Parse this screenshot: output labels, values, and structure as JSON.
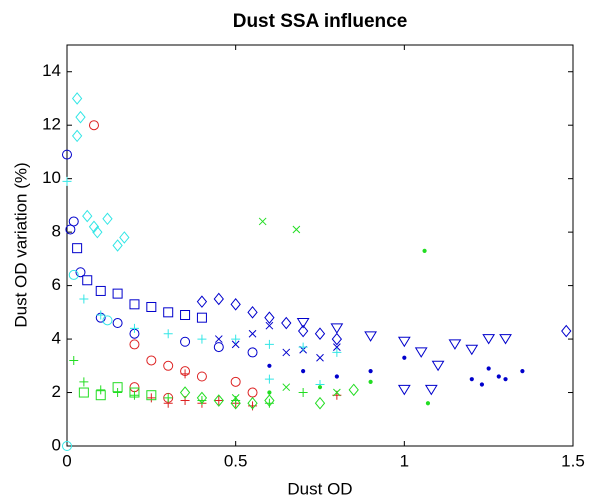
{
  "chart_data": {
    "type": "scatter",
    "title": "Dust SSA influence",
    "x_label": "Dust OD",
    "y_label": "Dust OD variation (%)",
    "xlim": [
      0,
      1.5
    ],
    "xticks": [
      0,
      0.5,
      1,
      1.5
    ],
    "ylim": [
      0,
      15
    ],
    "yticks": [
      0,
      2,
      4,
      6,
      8,
      10,
      12,
      14
    ],
    "grid": false,
    "series": [
      {
        "color": "#0000cc",
        "marker": "circle",
        "x": [
          0,
          0.02,
          0.01,
          0.04,
          0.1,
          0.15,
          0.2,
          0.35,
          0.45,
          0.55
        ],
        "values": [
          10.9,
          8.4,
          8.1,
          6.5,
          4.8,
          4.6,
          4.2,
          3.9,
          3.7,
          3.5
        ]
      },
      {
        "color": "#0000cc",
        "marker": "square",
        "x": [
          0.03,
          0.06,
          0.1,
          0.15,
          0.2,
          0.25,
          0.3,
          0.35,
          0.4
        ],
        "values": [
          7.4,
          6.2,
          5.8,
          5.7,
          5.3,
          5.2,
          5.0,
          4.9,
          4.8
        ]
      },
      {
        "color": "#0000cc",
        "marker": "diamond",
        "x": [
          0.4,
          0.45,
          0.5,
          0.55,
          0.6,
          0.65,
          0.7,
          0.75,
          0.8,
          1.48
        ],
        "values": [
          5.4,
          5.5,
          5.3,
          5.0,
          4.8,
          4.6,
          4.3,
          4.2,
          4.0,
          4.3
        ]
      },
      {
        "color": "#0000cc",
        "marker": "x",
        "x": [
          0.45,
          0.5,
          0.55,
          0.6,
          0.65,
          0.7,
          0.75,
          0.8
        ],
        "values": [
          4.0,
          3.8,
          4.2,
          4.5,
          3.5,
          3.6,
          3.3,
          3.7
        ]
      },
      {
        "color": "#0000cc",
        "marker": "triangle-down",
        "x": [
          0.7,
          0.8,
          0.9,
          1.0,
          1.05,
          1.1,
          1.15,
          1.2,
          1.25,
          1.3,
          1.0,
          1.08
        ],
        "values": [
          4.6,
          4.4,
          4.1,
          3.9,
          3.5,
          3.0,
          3.8,
          3.6,
          4.0,
          4.0,
          2.1,
          2.1
        ]
      },
      {
        "color": "#0000cc",
        "marker": "dot",
        "x": [
          0.6,
          0.7,
          0.8,
          0.9,
          1.0,
          1.2,
          1.25,
          1.28,
          1.3,
          1.35,
          1.23
        ],
        "values": [
          3.0,
          2.8,
          2.6,
          2.8,
          3.3,
          2.5,
          2.9,
          2.6,
          2.5,
          2.8,
          2.3
        ]
      },
      {
        "color": "#33e6e6",
        "marker": "diamond",
        "x": [
          0.03,
          0.04,
          0.03,
          0.06,
          0.08,
          0.09,
          0.12,
          0.15,
          0.17
        ],
        "values": [
          13.0,
          12.3,
          11.6,
          8.6,
          8.2,
          8.0,
          8.5,
          7.5,
          7.8
        ]
      },
      {
        "color": "#33e6e6",
        "marker": "plus",
        "x": [
          0,
          0.05,
          0.1,
          0.2,
          0.3,
          0.4,
          0.5,
          0.6,
          0.7,
          0.8,
          0.6,
          0.75
        ],
        "values": [
          9.9,
          5.5,
          4.9,
          4.4,
          4.2,
          4.0,
          4.0,
          3.8,
          3.7,
          3.5,
          2.5,
          2.3
        ]
      },
      {
        "color": "#33e6e6",
        "marker": "circle",
        "x": [
          0,
          0.02,
          0.12
        ],
        "values": [
          0,
          6.4,
          4.7
        ]
      },
      {
        "color": "#dd2222",
        "marker": "circle",
        "x": [
          0.08,
          0.2,
          0.25,
          0.3,
          0.35,
          0.4,
          0.2,
          0.5,
          0.55,
          0.3
        ],
        "values": [
          12.0,
          3.8,
          3.2,
          3.0,
          2.8,
          2.6,
          2.2,
          2.4,
          2.0,
          1.8
        ]
      },
      {
        "color": "#dd2222",
        "marker": "plus",
        "x": [
          0.25,
          0.3,
          0.35,
          0.4,
          0.45,
          0.5,
          0.55,
          0.8,
          0.35
        ],
        "values": [
          1.8,
          1.6,
          1.7,
          1.6,
          1.7,
          1.6,
          1.5,
          1.9,
          2.7
        ]
      },
      {
        "color": "#22dd22",
        "marker": "plus",
        "x": [
          0.02,
          0.05,
          0.1,
          0.15,
          0.2,
          0.3,
          0.4,
          0.5,
          0.6,
          0.7
        ],
        "values": [
          3.2,
          2.4,
          2.1,
          2.0,
          1.9,
          1.8,
          1.7,
          1.7,
          1.6,
          2.0
        ]
      },
      {
        "color": "#22dd22",
        "marker": "square",
        "x": [
          0.05,
          0.1,
          0.15,
          0.2,
          0.25
        ],
        "values": [
          2.0,
          1.9,
          2.2,
          2.0,
          1.9
        ]
      },
      {
        "color": "#22dd22",
        "marker": "diamond",
        "x": [
          0.35,
          0.4,
          0.45,
          0.5,
          0.55,
          0.6,
          0.75,
          0.85
        ],
        "values": [
          2.0,
          1.8,
          1.7,
          1.6,
          1.6,
          1.7,
          1.6,
          2.1
        ]
      },
      {
        "color": "#22dd22",
        "marker": "x",
        "x": [
          0.58,
          0.68,
          0.5,
          0.65,
          0.8
        ],
        "values": [
          8.4,
          8.1,
          1.8,
          2.2,
          2.0
        ]
      },
      {
        "color": "#22dd22",
        "marker": "dot",
        "x": [
          1.06,
          1.07,
          0.9,
          0.75,
          0.6
        ],
        "values": [
          7.3,
          1.6,
          2.4,
          2.2,
          2.0
        ]
      }
    ]
  }
}
